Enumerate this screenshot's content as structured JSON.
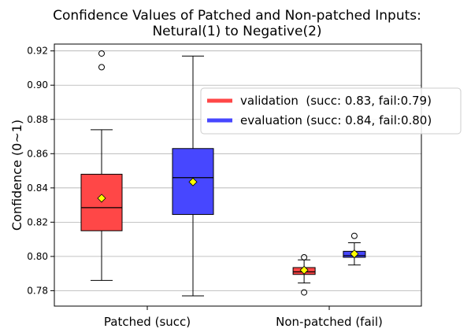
{
  "chart_data": {
    "type": "box",
    "title_lines": [
      "Confidence Values of Patched and Non-patched Inputs:",
      "Netural(1) to Negative(2)"
    ],
    "xlabel": "",
    "ylabel": "Confidence (0~1)",
    "ylim": [
      0.771,
      0.924
    ],
    "yticks": [
      0.78,
      0.8,
      0.82,
      0.84,
      0.86,
      0.88,
      0.9,
      0.92
    ],
    "ytick_labels": [
      "0.78",
      "0.80",
      "0.82",
      "0.84",
      "0.86",
      "0.88",
      "0.90",
      "0.92"
    ],
    "grid": "y",
    "legend_position": "upper-right",
    "categories": [
      "Patched (succ)",
      "Non-patched (fail)"
    ],
    "series": [
      {
        "name": "validation  (succ: 0.83, fail:0.79)",
        "color": "#ff4747",
        "boxes": [
          {
            "whisker_low": 0.786,
            "q1": 0.815,
            "median": 0.8285,
            "q3": 0.848,
            "whisker_high": 0.874,
            "mean": 0.834,
            "outliers": [
              0.9185,
              0.9105
            ]
          },
          {
            "whisker_low": 0.7845,
            "q1": 0.7895,
            "median": 0.791,
            "q3": 0.7935,
            "whisker_high": 0.798,
            "mean": 0.792,
            "outliers": [
              0.7995,
              0.779
            ]
          }
        ]
      },
      {
        "name": "evaluation (succ: 0.84, fail:0.80)",
        "color": "#4747ff",
        "boxes": [
          {
            "whisker_low": 0.777,
            "q1": 0.8245,
            "median": 0.846,
            "q3": 0.863,
            "whisker_high": 0.917,
            "mean": 0.8435,
            "outliers": []
          },
          {
            "whisker_low": 0.795,
            "q1": 0.7995,
            "median": 0.8005,
            "q3": 0.803,
            "whisker_high": 0.808,
            "mean": 0.8015,
            "outliers": [
              0.812
            ]
          }
        ]
      }
    ],
    "mean_marker_color": "#ffff00"
  }
}
